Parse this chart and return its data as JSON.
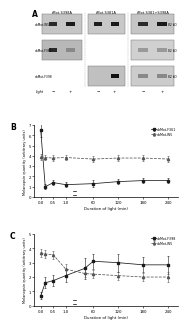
{
  "panel_A": {
    "label": "A",
    "group_titles": [
      "rMot-S398A",
      "rMot-S381A",
      "rMot-S381+S398A"
    ],
    "row_labels": [
      "abMot-W5",
      "abMot-F361",
      "abMot-F398"
    ],
    "kda_labels": [
      "82 kD",
      "82 kD",
      "82 kD"
    ],
    "light_row": [
      "Light",
      "-",
      "+",
      "-",
      "+",
      "-",
      "+"
    ]
  },
  "panel_B": {
    "label": "B",
    "xlabel": "Duration of light (min)",
    "ylabel": "Melanopsin quantity (arbitrary units)",
    "legend": [
      "abMot-F361",
      "abMot-W5"
    ],
    "x": [
      0.0,
      0.1,
      0.5,
      1.0,
      60,
      120,
      180,
      240
    ],
    "F361_y": [
      6.5,
      1.0,
      1.4,
      1.2,
      1.3,
      1.5,
      1.6,
      1.6
    ],
    "F361_err": [
      0.65,
      0.25,
      0.28,
      0.25,
      0.35,
      0.28,
      0.28,
      0.28
    ],
    "W5_y": [
      3.9,
      3.85,
      3.8,
      3.85,
      3.7,
      3.8,
      3.8,
      3.7
    ],
    "W5_err": [
      0.28,
      0.28,
      0.28,
      0.28,
      0.28,
      0.28,
      0.28,
      0.28
    ],
    "ylim": [
      0,
      7
    ],
    "yticks": [
      0,
      1,
      2,
      3,
      4,
      5,
      6,
      7
    ]
  },
  "panel_C": {
    "label": "C",
    "xlabel": "Duration of light (min)",
    "ylabel": "Melanopsin quantity (arbitrary units)",
    "legend": [
      "abMot-F398",
      "abMot-W5"
    ],
    "x": [
      0.0,
      0.1,
      0.5,
      1.0,
      30,
      60,
      120,
      180,
      240
    ],
    "F398_y": [
      0.7,
      1.6,
      1.75,
      2.1,
      2.6,
      3.1,
      3.0,
      2.85,
      2.85
    ],
    "F398_err": [
      0.25,
      0.38,
      0.38,
      0.42,
      0.72,
      0.52,
      0.62,
      0.52,
      0.65
    ],
    "W5_y": [
      3.7,
      3.6,
      3.55,
      2.55,
      2.25,
      2.2,
      2.1,
      2.0,
      2.0
    ],
    "W5_err": [
      0.28,
      0.28,
      0.28,
      0.38,
      0.28,
      0.28,
      0.28,
      0.28,
      0.35
    ],
    "ylim": [
      0,
      5
    ],
    "yticks": [
      0,
      1,
      2,
      3,
      4,
      5
    ]
  },
  "xmap_B": {
    "0.0": 0.0,
    "0.1": 0.18,
    "0.5": 0.5,
    "1.0": 1.0,
    "60": 2.1,
    "120": 3.1,
    "180": 4.1,
    "240": 5.1
  },
  "xmap_C": {
    "0.0": 0.0,
    "0.1": 0.18,
    "0.5": 0.5,
    "1.0": 1.0,
    "30": 1.75,
    "60": 2.1,
    "120": 3.1,
    "180": 4.1,
    "240": 5.1
  },
  "xtick_pos_display": [
    0.0,
    0.5,
    1.0,
    2.1,
    3.1,
    4.1,
    5.1
  ],
  "xtick_labels": [
    "0.0",
    "0.5",
    "1.0",
    "60",
    "120",
    "180",
    "240"
  ],
  "xlim": [
    -0.25,
    5.5
  ],
  "break_x_display": 1.35,
  "colors": {
    "solid": "#1a1a1a",
    "dashed": "#555555",
    "background": "#f5f5f5",
    "blot_bg_light": "#c8c8c8",
    "blot_bg_dark": "#a0a0a0",
    "band_dark": "#151515",
    "band_mid": "#555555",
    "band_light": "#999999"
  }
}
